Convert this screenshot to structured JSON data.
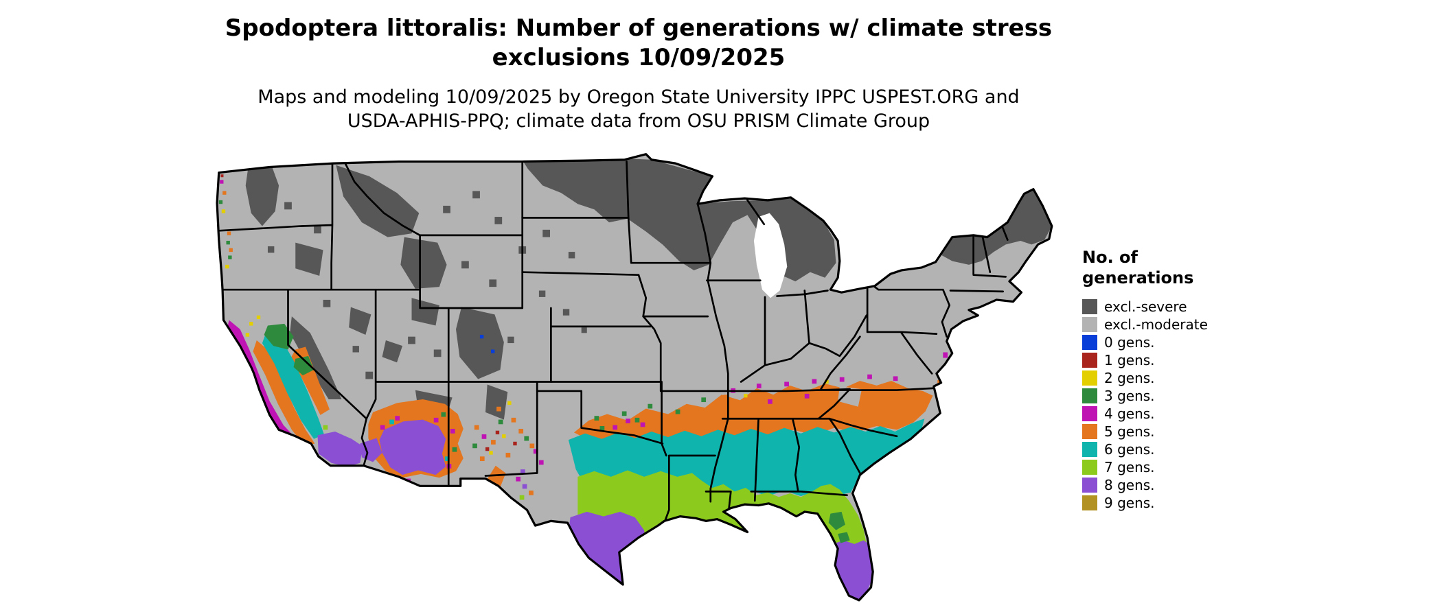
{
  "header": {
    "title_line1": "Spodoptera littoralis: Number of generations w/ climate stress",
    "title_line2": "exclusions 10/09/2025",
    "subtitle_line1": "Maps and modeling 10/09/2025 by Oregon State University IPPC USPEST.ORG and",
    "subtitle_line2": "USDA-APHIS-PPQ; climate data from OSU PRISM Climate Group"
  },
  "legend": {
    "title_line1": "No. of",
    "title_line2": "generations",
    "items": [
      {
        "key": "severe",
        "label": "excl.-severe",
        "color": "#575757"
      },
      {
        "key": "moderate",
        "label": "excl.-moderate",
        "color": "#b3b3b3"
      },
      {
        "key": "g0",
        "label": "0 gens.",
        "color": "#0a3ed8"
      },
      {
        "key": "g1",
        "label": "1 gens.",
        "color": "#a8241c"
      },
      {
        "key": "g2",
        "label": "2 gens.",
        "color": "#e3cf00"
      },
      {
        "key": "g3",
        "label": "3 gens.",
        "color": "#2e8b3d"
      },
      {
        "key": "g4",
        "label": "4 gens.",
        "color": "#c013b4"
      },
      {
        "key": "g5",
        "label": "5 gens.",
        "color": "#e3761f"
      },
      {
        "key": "g6",
        "label": "6 gens.",
        "color": "#0fb4ac"
      },
      {
        "key": "g7",
        "label": "7 gens.",
        "color": "#8ccb1e"
      },
      {
        "key": "g8",
        "label": "8 gens.",
        "color": "#8b4fd4"
      },
      {
        "key": "g9",
        "label": "9 gens.",
        "color": "#b29222"
      }
    ]
  }
}
